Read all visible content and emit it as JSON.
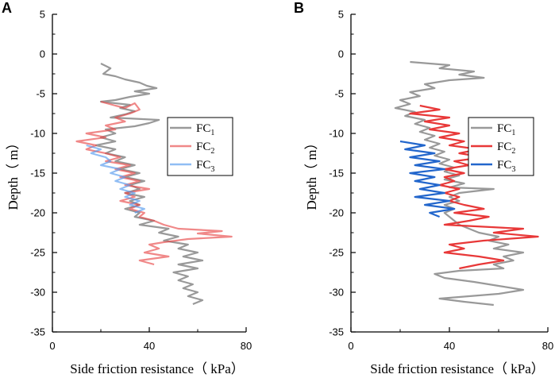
{
  "chart_data": [
    {
      "panel": "A",
      "type": "line",
      "xlabel": "Side friction resistance（ kPa）",
      "ylabel": "Depth（ m）",
      "xlim": [
        0,
        80
      ],
      "ylim": [
        -35,
        5
      ],
      "xticks": [
        "0",
        "40",
        "80"
      ],
      "yticks": [
        "5",
        "0",
        "-5",
        "-10",
        "-15",
        "-20",
        "-25",
        "-30",
        "-35"
      ],
      "legend": {
        "position": "center-right"
      },
      "series": [
        {
          "name": "FC",
          "sub": "1",
          "color": "#999999",
          "alpha": 1,
          "points": [
            [
              20,
              -1.2
            ],
            [
              24,
              -1.8
            ],
            [
              21,
              -2.5
            ],
            [
              26,
              -2.8
            ],
            [
              30,
              -3.2
            ],
            [
              36,
              -3.6
            ],
            [
              39,
              -4
            ],
            [
              43,
              -4.3
            ],
            [
              34,
              -4.7
            ],
            [
              40,
              -5
            ],
            [
              32,
              -5.4
            ],
            [
              26,
              -5.8
            ],
            [
              20,
              -6
            ],
            [
              32,
              -6.4
            ],
            [
              28,
              -6.8
            ],
            [
              34,
              -7.2
            ],
            [
              30,
              -7.6
            ],
            [
              24,
              -8
            ],
            [
              44,
              -8.3
            ],
            [
              40,
              -8.7
            ],
            [
              34,
              -9.1
            ],
            [
              22,
              -9.5
            ],
            [
              26,
              -10
            ],
            [
              20,
              -10.5
            ],
            [
              26,
              -11
            ],
            [
              18,
              -11.5
            ],
            [
              26,
              -12
            ],
            [
              22,
              -12.5
            ],
            [
              30,
              -13
            ],
            [
              26,
              -13.5
            ],
            [
              34,
              -14
            ],
            [
              28,
              -14.5
            ],
            [
              36,
              -15
            ],
            [
              30,
              -15.5
            ],
            [
              38,
              -16
            ],
            [
              32,
              -16.5
            ],
            [
              36,
              -17
            ],
            [
              30,
              -17.5
            ],
            [
              38,
              -18
            ],
            [
              32,
              -18.5
            ],
            [
              36,
              -19
            ],
            [
              30,
              -19.5
            ],
            [
              36,
              -20
            ],
            [
              34,
              -20.5
            ],
            [
              42,
              -21
            ],
            [
              36,
              -21.5
            ],
            [
              48,
              -22
            ],
            [
              44,
              -22.5
            ],
            [
              52,
              -23
            ],
            [
              46,
              -23.5
            ],
            [
              56,
              -24
            ],
            [
              52,
              -24.5
            ],
            [
              60,
              -25
            ],
            [
              54,
              -25.5
            ],
            [
              62,
              -26
            ],
            [
              52,
              -26.5
            ],
            [
              60,
              -27
            ],
            [
              50,
              -27.5
            ],
            [
              56,
              -28
            ],
            [
              52,
              -28.5
            ],
            [
              58,
              -29
            ],
            [
              54,
              -29.5
            ],
            [
              60,
              -30
            ],
            [
              56,
              -30.5
            ],
            [
              62,
              -31
            ],
            [
              58,
              -31.5
            ]
          ]
        },
        {
          "name": "FC",
          "sub": "2",
          "color": "#e84848",
          "alpha": 0.65,
          "points": [
            [
              20,
              -6
            ],
            [
              26,
              -6.5
            ],
            [
              30,
              -6.8
            ],
            [
              34,
              -6.2
            ],
            [
              36,
              -7
            ],
            [
              32,
              -7.5
            ],
            [
              26,
              -8
            ],
            [
              30,
              -8.5
            ],
            [
              22,
              -9
            ],
            [
              26,
              -9.5
            ],
            [
              14,
              -10
            ],
            [
              22,
              -10.5
            ],
            [
              10,
              -11
            ],
            [
              18,
              -11.5
            ],
            [
              14,
              -12
            ],
            [
              22,
              -12.5
            ],
            [
              28,
              -13
            ],
            [
              22,
              -13.5
            ],
            [
              32,
              -14
            ],
            [
              26,
              -14.5
            ],
            [
              34,
              -15
            ],
            [
              28,
              -15.5
            ],
            [
              36,
              -16
            ],
            [
              30,
              -16.5
            ],
            [
              40,
              -17
            ],
            [
              30,
              -17.5
            ],
            [
              34,
              -18
            ],
            [
              28,
              -18.5
            ],
            [
              36,
              -19
            ],
            [
              32,
              -19.5
            ],
            [
              38,
              -20
            ],
            [
              36,
              -20.5
            ],
            [
              42,
              -21
            ],
            [
              46,
              -21.5
            ],
            [
              52,
              -22
            ],
            [
              70,
              -22.3
            ],
            [
              60,
              -22.6
            ],
            [
              74,
              -23
            ],
            [
              56,
              -23.3
            ],
            [
              46,
              -23.7
            ],
            [
              40,
              -24
            ],
            [
              44,
              -24.5
            ],
            [
              38,
              -25
            ],
            [
              48,
              -25.5
            ],
            [
              36,
              -26
            ],
            [
              42,
              -26.5
            ]
          ]
        },
        {
          "name": "FC",
          "sub": "3",
          "color": "#5599ee",
          "alpha": 0.65,
          "points": [
            [
              14,
              -11.5
            ],
            [
              20,
              -12
            ],
            [
              16,
              -12.5
            ],
            [
              22,
              -13
            ],
            [
              24,
              -13.5
            ],
            [
              20,
              -14
            ],
            [
              28,
              -14.5
            ],
            [
              24,
              -15
            ],
            [
              30,
              -15.5
            ],
            [
              26,
              -16
            ],
            [
              32,
              -16.5
            ],
            [
              28,
              -17
            ],
            [
              34,
              -17.5
            ],
            [
              30,
              -18
            ],
            [
              36,
              -18.5
            ],
            [
              32,
              -19
            ],
            [
              38,
              -19.5
            ],
            [
              34,
              -20
            ]
          ]
        }
      ]
    },
    {
      "panel": "B",
      "type": "line",
      "xlabel": "Side friction resistance（ kPa）",
      "ylabel": "Depth（ m）",
      "xlim": [
        0,
        80
      ],
      "ylim": [
        -35,
        5
      ],
      "xticks": [
        "0",
        "40",
        "80"
      ],
      "yticks": [
        "5",
        "0",
        "-5",
        "-10",
        "-15",
        "-20",
        "-25",
        "-30",
        "-35"
      ],
      "legend": {
        "position": "center-right"
      },
      "series": [
        {
          "name": "FC",
          "sub": "1",
          "color": "#999999",
          "alpha": 1,
          "points": [
            [
              24,
              -1
            ],
            [
              40,
              -1.4
            ],
            [
              36,
              -1.8
            ],
            [
              50,
              -2.2
            ],
            [
              44,
              -2.6
            ],
            [
              54,
              -3
            ],
            [
              40,
              -3.3
            ],
            [
              30,
              -3.8
            ],
            [
              34,
              -4.3
            ],
            [
              24,
              -4.8
            ],
            [
              28,
              -5.3
            ],
            [
              20,
              -5.8
            ],
            [
              24,
              -6.3
            ],
            [
              18,
              -6.8
            ],
            [
              26,
              -7.3
            ],
            [
              22,
              -7.8
            ],
            [
              30,
              -8.3
            ],
            [
              26,
              -8.8
            ],
            [
              32,
              -9.3
            ],
            [
              28,
              -9.8
            ],
            [
              34,
              -10.3
            ],
            [
              30,
              -10.8
            ],
            [
              36,
              -11.3
            ],
            [
              32,
              -11.8
            ],
            [
              38,
              -12.3
            ],
            [
              34,
              -12.8
            ],
            [
              40,
              -13.3
            ],
            [
              36,
              -13.8
            ],
            [
              42,
              -14.3
            ],
            [
              38,
              -14.8
            ],
            [
              44,
              -15.3
            ],
            [
              38,
              -15.8
            ],
            [
              46,
              -16.3
            ],
            [
              40,
              -16.8
            ],
            [
              58,
              -17
            ],
            [
              44,
              -17.5
            ],
            [
              40,
              -18
            ],
            [
              44,
              -18.5
            ],
            [
              38,
              -19
            ],
            [
              42,
              -19.5
            ],
            [
              38,
              -20
            ],
            [
              40,
              -20.5
            ],
            [
              42,
              -21
            ],
            [
              44,
              -21.5
            ],
            [
              48,
              -22
            ],
            [
              52,
              -22.5
            ],
            [
              60,
              -23
            ],
            [
              56,
              -23.5
            ],
            [
              64,
              -24
            ],
            [
              58,
              -24.5
            ],
            [
              70,
              -25
            ],
            [
              62,
              -25.5
            ],
            [
              66,
              -26
            ],
            [
              58,
              -26.5
            ],
            [
              62,
              -27
            ],
            [
              44,
              -27.3
            ],
            [
              34,
              -27.7
            ],
            [
              38,
              -28.2
            ],
            [
              50,
              -28.7
            ],
            [
              60,
              -29.2
            ],
            [
              70,
              -29.7
            ],
            [
              60,
              -30.2
            ],
            [
              48,
              -30.5
            ],
            [
              36,
              -30.8
            ],
            [
              46,
              -31.2
            ],
            [
              58,
              -31.6
            ]
          ]
        },
        {
          "name": "FC",
          "sub": "2",
          "color": "#e83838",
          "alpha": 1,
          "points": [
            [
              28,
              -6.5
            ],
            [
              36,
              -7
            ],
            [
              24,
              -7.5
            ],
            [
              40,
              -8
            ],
            [
              30,
              -8.5
            ],
            [
              40,
              -9
            ],
            [
              32,
              -9.5
            ],
            [
              44,
              -10
            ],
            [
              36,
              -10.5
            ],
            [
              46,
              -11
            ],
            [
              40,
              -11.5
            ],
            [
              52,
              -12
            ],
            [
              44,
              -12.5
            ],
            [
              54,
              -13
            ],
            [
              42,
              -13.5
            ],
            [
              48,
              -14
            ],
            [
              38,
              -14.5
            ],
            [
              46,
              -15
            ],
            [
              38,
              -15.5
            ],
            [
              42,
              -16
            ],
            [
              36,
              -16.5
            ],
            [
              44,
              -17
            ],
            [
              38,
              -17.5
            ],
            [
              44,
              -18
            ],
            [
              40,
              -18.5
            ],
            [
              46,
              -19
            ],
            [
              54,
              -19.5
            ],
            [
              42,
              -20
            ],
            [
              56,
              -20.5
            ],
            [
              48,
              -21
            ],
            [
              38,
              -21.5
            ],
            [
              70,
              -22
            ],
            [
              58,
              -22.5
            ],
            [
              76,
              -23
            ],
            [
              54,
              -23.5
            ],
            [
              40,
              -24
            ],
            [
              46,
              -24.5
            ],
            [
              38,
              -25
            ],
            [
              52,
              -25.5
            ],
            [
              62,
              -26
            ],
            [
              52,
              -26.5
            ],
            [
              44,
              -27
            ]
          ]
        },
        {
          "name": "FC",
          "sub": "3",
          "color": "#2266cc",
          "alpha": 1,
          "points": [
            [
              20,
              -11
            ],
            [
              30,
              -11.5
            ],
            [
              22,
              -12
            ],
            [
              34,
              -12.5
            ],
            [
              24,
              -13
            ],
            [
              36,
              -13.5
            ],
            [
              26,
              -14
            ],
            [
              38,
              -14.5
            ],
            [
              24,
              -15
            ],
            [
              34,
              -15.5
            ],
            [
              26,
              -16
            ],
            [
              36,
              -16.5
            ],
            [
              28,
              -17
            ],
            [
              38,
              -17.5
            ],
            [
              26,
              -18
            ],
            [
              40,
              -18.5
            ],
            [
              30,
              -19
            ],
            [
              42,
              -19.5
            ],
            [
              32,
              -20
            ],
            [
              36,
              -20.5
            ]
          ]
        }
      ]
    }
  ]
}
